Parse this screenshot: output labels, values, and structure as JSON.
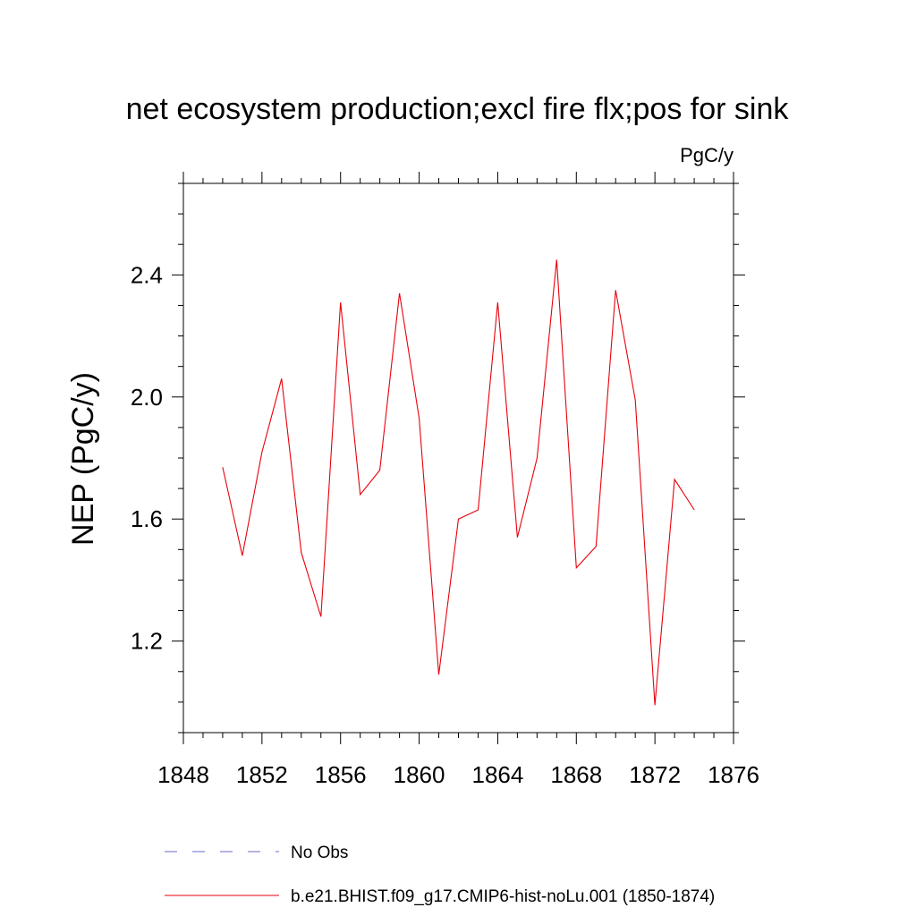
{
  "chart_data": {
    "type": "line",
    "title": "net ecosystem production;excl fire flx;pos for sink",
    "units": "PgC/y",
    "ylabel": "NEP  (PgC/y)",
    "xlabel": "",
    "xlim": [
      1848,
      1876
    ],
    "ylim": [
      0.9,
      2.7
    ],
    "xticks": [
      1848,
      1852,
      1856,
      1860,
      1864,
      1868,
      1872,
      1876
    ],
    "xtick_labels": [
      "1848",
      "1852",
      "1856",
      "1860",
      "1864",
      "1868",
      "1872",
      "1876"
    ],
    "yticks": [
      1.2,
      1.6,
      2.0,
      2.4
    ],
    "ytick_labels": [
      "1.2",
      "1.6",
      "2.0",
      "2.4"
    ],
    "grid": false,
    "legend_position": "bottom",
    "series": [
      {
        "name": "b.e21.BHIST.f09_g17.CMIP6-hist-noLu.001 (1850-1874)",
        "color": "#e8000b",
        "style": "solid",
        "x": [
          1850,
          1851,
          1852,
          1853,
          1854,
          1855,
          1856,
          1857,
          1858,
          1859,
          1860,
          1861,
          1862,
          1863,
          1864,
          1865,
          1866,
          1867,
          1868,
          1869,
          1870,
          1871,
          1872,
          1873,
          1874
        ],
        "values": [
          1.77,
          1.48,
          1.82,
          2.06,
          1.49,
          1.28,
          2.31,
          1.68,
          1.76,
          2.34,
          1.93,
          1.09,
          1.6,
          1.63,
          2.31,
          1.54,
          1.8,
          2.45,
          1.44,
          1.51,
          2.35,
          1.99,
          0.99,
          1.73,
          1.63
        ]
      }
    ],
    "legend": [
      {
        "label": "No Obs",
        "color": "#6a6ac8",
        "style": "dashed"
      },
      {
        "label": "b.e21.BHIST.f09_g17.CMIP6-hist-noLu.001 (1850-1874)",
        "color": "#e8000b",
        "style": "solid"
      }
    ]
  }
}
